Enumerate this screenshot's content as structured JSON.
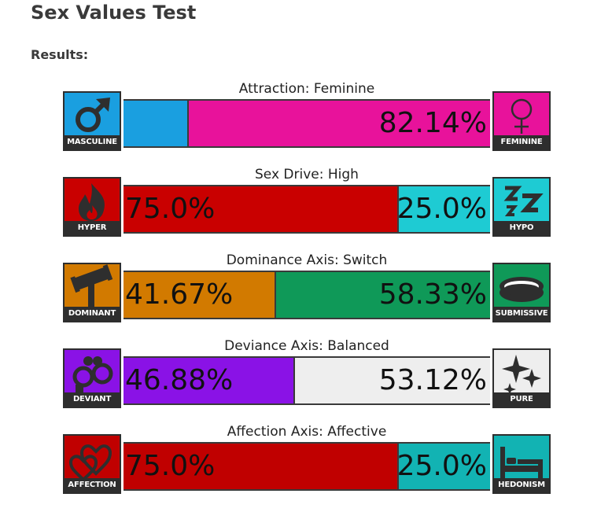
{
  "page": {
    "title": "Sex Values Test",
    "results_label": "Results:"
  },
  "axes": [
    {
      "title": "Attraction: Feminine",
      "left": {
        "label": "MASCULINE",
        "icon": "mars-icon",
        "color": "#1a9fe0",
        "percent": 17.86,
        "display": ""
      },
      "right": {
        "label": "FEMININE",
        "icon": "venus-icon",
        "color": "#e8129b",
        "percent": 82.14,
        "display": "82.14%"
      }
    },
    {
      "title": "Sex Drive: High",
      "left": {
        "label": "HYPER",
        "icon": "fire-icon",
        "color": "#c90000",
        "percent": 75.0,
        "display": "75.0%"
      },
      "right": {
        "label": "HYPO",
        "icon": "sleep-zzz-icon",
        "color": "#1ecbd3",
        "percent": 25.0,
        "display": "25.0%"
      }
    },
    {
      "title": "Dominance Axis: Switch",
      "left": {
        "label": "DOMINANT",
        "icon": "gavel-icon",
        "color": "#d27a00",
        "percent": 41.67,
        "display": "41.67%"
      },
      "right": {
        "label": "SUBMISSIVE",
        "icon": "collar-icon",
        "color": "#0f9958",
        "percent": 58.33,
        "display": "58.33%"
      }
    },
    {
      "title": "Deviance Axis: Balanced",
      "left": {
        "label": "DEVIANT",
        "icon": "handcuffs-icon",
        "color": "#8a12e6",
        "percent": 46.88,
        "display": "46.88%"
      },
      "right": {
        "label": "PURE",
        "icon": "sparkles-icon",
        "color": "#eeeeee",
        "percent": 53.12,
        "display": "53.12%"
      }
    },
    {
      "title": "Affection Axis: Affective",
      "left": {
        "label": "AFFECTION",
        "icon": "hearts-icon",
        "color": "#c00000",
        "percent": 75.0,
        "display": "75.0%"
      },
      "right": {
        "label": "HEDONISM",
        "icon": "bed-icon",
        "color": "#12b3b3",
        "percent": 25.0,
        "display": "25.0%"
      }
    }
  ]
}
